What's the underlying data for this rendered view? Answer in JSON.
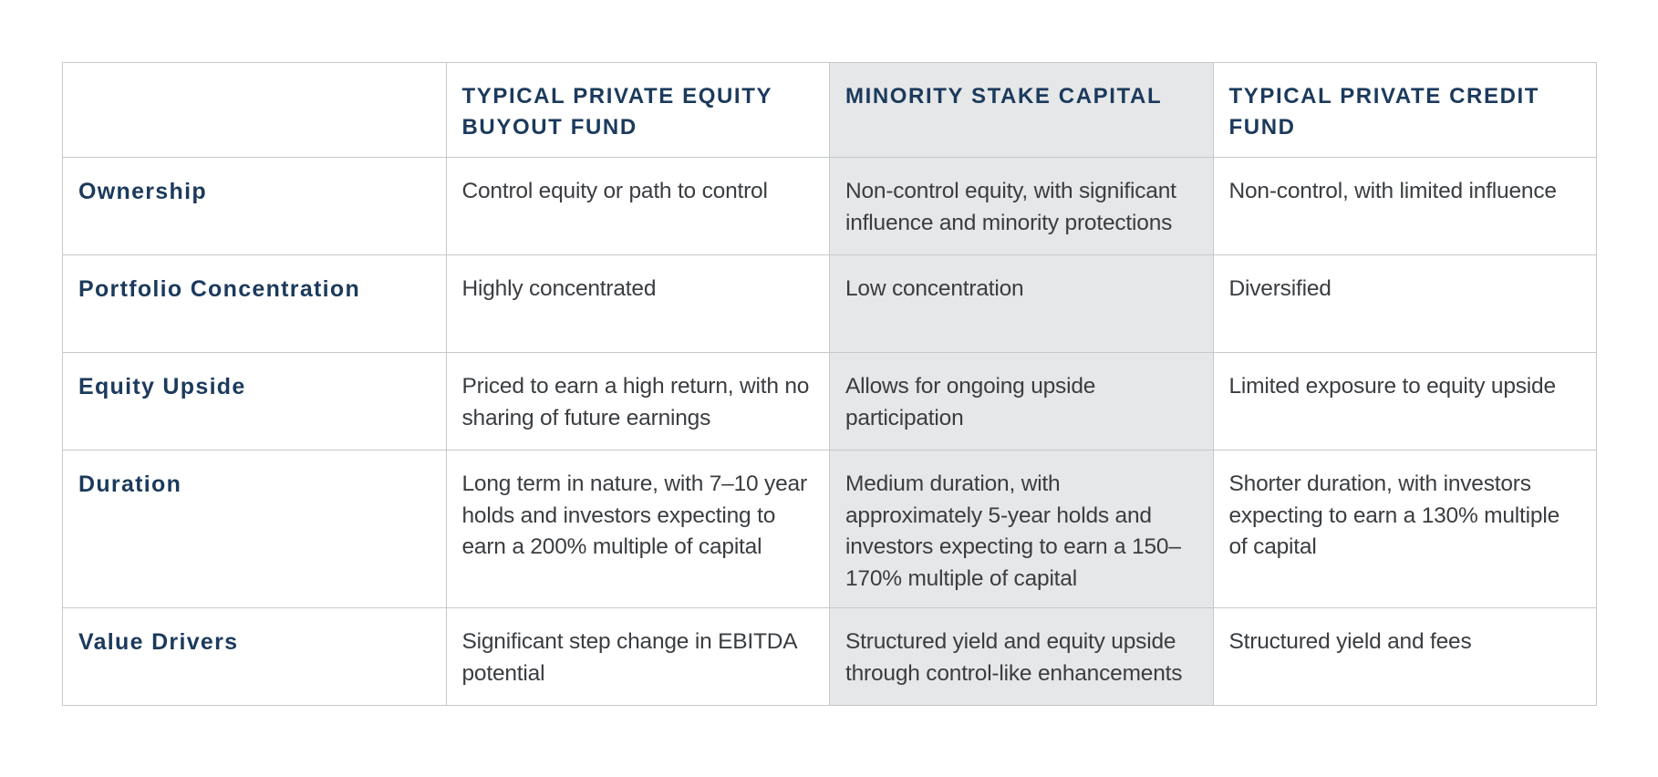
{
  "columns": {
    "col1": "TYPICAL PRIVATE EQUITY BUYOUT FUND",
    "col2": "MINORITY STAKE CAPITAL",
    "col3": "TYPICAL PRIVATE CREDIT FUND"
  },
  "highlight_color": "#e6e7e8",
  "header_color": "#1b3a5c",
  "rows": [
    {
      "label": "Ownership",
      "col1": "Control equity or path to control",
      "col2": "Non-control equity, with significant influence and minority protections",
      "col3": "Non-control, with limited influence"
    },
    {
      "label": "Portfolio Concentration",
      "col1": "Highly concentrated",
      "col2": "Low concentration",
      "col3": "Diversified"
    },
    {
      "label": "Equity Upside",
      "col1": "Priced to earn a high return, with no sharing of future earnings",
      "col2": "Allows for ongoing upside participation",
      "col3": "Limited exposure to equity upside"
    },
    {
      "label": "Duration",
      "col1": "Long term in nature, with 7–10 year holds and investors expecting to earn a 200% multiple of capital",
      "col2": "Medium duration, with approximately 5-year holds and investors expecting to earn a 150–170% multiple of capital",
      "col3": "Shorter duration, with investors expecting to earn a 130% multiple of capital"
    },
    {
      "label": "Value Drivers",
      "col1": "Significant step change in EBITDA potential",
      "col2": "Structured yield and equity upside through control-like enhancements",
      "col3": "Structured yield and fees"
    }
  ]
}
